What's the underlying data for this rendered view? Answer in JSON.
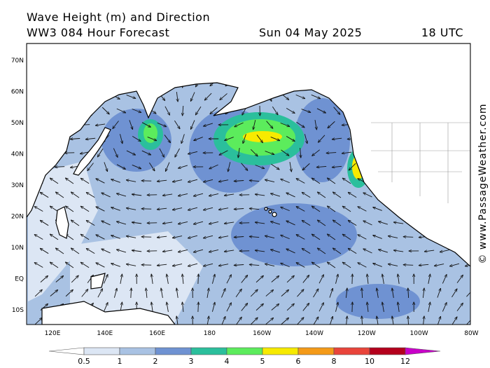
{
  "header": {
    "title": "Wave Height (m) and Direction",
    "subtitle": "WW3 084 Hour Forecast",
    "date": "Sun 04 May 2025",
    "time": "18 UTC"
  },
  "watermark": "© www.PassageWeather.com",
  "map": {
    "lat_labels": [
      "70N",
      "60N",
      "50N",
      "40N",
      "30N",
      "20N",
      "10N",
      "EQ",
      "10S"
    ],
    "lon_labels": [
      "120E",
      "140E",
      "160E",
      "180",
      "160W",
      "140W",
      "120W",
      "100W",
      "80W"
    ]
  },
  "legend": {
    "ticks": [
      0.5,
      1,
      2,
      3,
      4,
      5,
      6,
      8,
      10,
      12
    ],
    "colors": [
      "#ffffff",
      "#dce6f4",
      "#a9c2e3",
      "#6f92d2",
      "#2bbf9c",
      "#5cec5c",
      "#f7ea00",
      "#f49a18",
      "#e9443a",
      "#b4001c",
      "#c800c8"
    ]
  }
}
